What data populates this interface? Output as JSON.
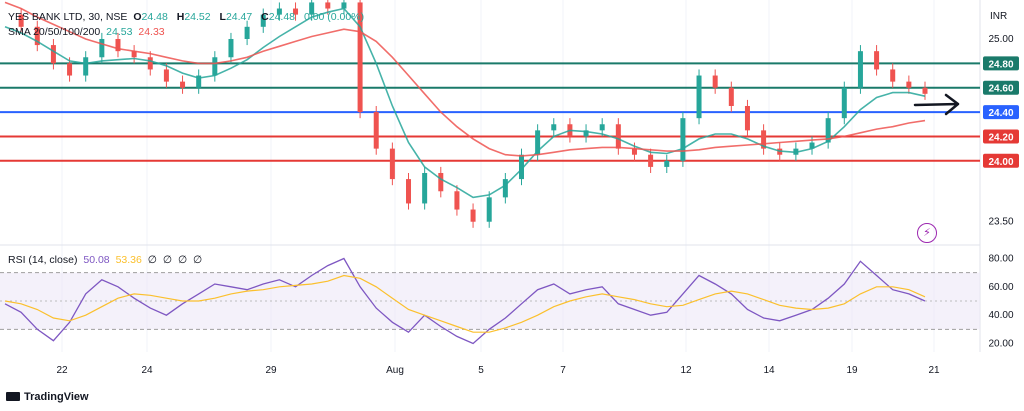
{
  "header": {
    "symbol": "YES BANK LTD, 30, NSE",
    "o_label": "O",
    "o": "24.48",
    "h_label": "H",
    "h": "24.52",
    "l_label": "L",
    "l": "24.47",
    "c_label": "C",
    "c": "24.48",
    "change": "0.00 (0.00%)",
    "sma_label": "SMA 20/50/100/200",
    "sma_values": [
      "24.53",
      "24.33"
    ]
  },
  "currency": "INR",
  "brand": "TradingView",
  "colors": {
    "up": "#26a69a",
    "down": "#ef5350",
    "sma20": "#26a69a",
    "sma50": "#ef5350",
    "rsi": "#7e57c2",
    "rsi_ma": "#fbc02d",
    "teal_level": "#1a7a6a",
    "blue_level": "#2962ff",
    "red_level": "#e53935"
  },
  "chart_data": [
    {
      "type": "line",
      "title": "YES BANK LTD, 30, NSE",
      "ylabel": "INR",
      "ylim": [
        23.35,
        25.32
      ],
      "x_ticks": [
        "22",
        "24",
        "29",
        "Aug",
        "5",
        "7",
        "12",
        "14",
        "19",
        "21"
      ],
      "y_ticks": [
        25.0,
        23.5
      ],
      "grid": true,
      "horizontal_levels": [
        {
          "value": 24.8,
          "label": "24.80",
          "color": "#1a7a6a"
        },
        {
          "value": 24.6,
          "label": "24.60",
          "color": "#1a7a6a"
        },
        {
          "value": 24.4,
          "label": "24.40",
          "color": "#2962ff"
        },
        {
          "value": 24.2,
          "label": "24.20",
          "color": "#e53935"
        },
        {
          "value": 24.0,
          "label": "24.00",
          "color": "#e53935"
        }
      ],
      "series": [
        {
          "name": "Price",
          "values": [
            25.2,
            25.1,
            24.95,
            24.8,
            24.7,
            24.85,
            25.0,
            24.9,
            24.85,
            24.75,
            24.65,
            24.6,
            24.7,
            24.85,
            25.0,
            25.1,
            25.2,
            25.25,
            25.2,
            25.3,
            25.25,
            25.3,
            24.4,
            24.1,
            23.85,
            23.65,
            23.9,
            23.75,
            23.6,
            23.5,
            23.7,
            23.85,
            24.05,
            24.25,
            24.3,
            24.2,
            24.25,
            24.3,
            24.1,
            24.05,
            23.95,
            24.0,
            24.35,
            24.7,
            24.6,
            24.45,
            24.25,
            24.1,
            24.05,
            24.1,
            24.15,
            24.35,
            24.6,
            24.9,
            24.75,
            24.65,
            24.6,
            24.55
          ]
        },
        {
          "name": "SMA 20",
          "values": [
            25.1,
            25.05,
            24.98,
            24.9,
            24.82,
            24.8,
            24.82,
            24.83,
            24.84,
            24.82,
            24.78,
            24.72,
            24.68,
            24.7,
            24.76,
            24.83,
            24.93,
            25.02,
            25.1,
            25.18,
            25.22,
            25.25,
            25.1,
            24.8,
            24.45,
            24.15,
            23.95,
            23.85,
            23.78,
            23.7,
            23.72,
            23.8,
            23.93,
            24.08,
            24.2,
            24.25,
            24.24,
            24.22,
            24.18,
            24.12,
            24.07,
            24.06,
            24.1,
            24.18,
            24.22,
            24.22,
            24.18,
            24.12,
            24.08,
            24.07,
            24.1,
            24.16,
            24.28,
            24.42,
            24.52,
            24.56,
            24.56,
            24.53
          ]
        },
        {
          "name": "SMA 50",
          "values": [
            25.3,
            25.25,
            25.18,
            25.12,
            25.06,
            25.0,
            24.96,
            24.92,
            24.9,
            24.88,
            24.85,
            24.82,
            24.8,
            24.8,
            24.82,
            24.85,
            24.9,
            24.94,
            24.98,
            25.02,
            25.05,
            25.08,
            25.06,
            24.98,
            24.85,
            24.7,
            24.55,
            24.4,
            24.28,
            24.18,
            24.1,
            24.05,
            24.04,
            24.05,
            24.07,
            24.09,
            24.1,
            24.11,
            24.11,
            24.1,
            24.09,
            24.08,
            24.08,
            24.09,
            24.11,
            24.12,
            24.13,
            24.14,
            24.15,
            24.16,
            24.17,
            24.18,
            24.2,
            24.23,
            24.26,
            24.28,
            24.31,
            24.33
          ]
        }
      ]
    },
    {
      "type": "line",
      "title": "RSI (14, close)",
      "ylim": [
        14,
        86
      ],
      "y_ticks": [
        80,
        60,
        40,
        20
      ],
      "band": [
        30,
        70
      ],
      "legend_values": [
        "50.08",
        "53.36"
      ],
      "legend_extra": [
        "∅",
        "∅",
        "∅",
        "∅"
      ],
      "series": [
        {
          "name": "RSI",
          "values": [
            48,
            42,
            30,
            22,
            35,
            55,
            65,
            60,
            52,
            45,
            40,
            48,
            55,
            62,
            60,
            58,
            62,
            65,
            60,
            68,
            75,
            80,
            60,
            45,
            35,
            28,
            40,
            32,
            25,
            20,
            30,
            38,
            48,
            58,
            62,
            55,
            58,
            60,
            48,
            44,
            40,
            42,
            55,
            68,
            62,
            55,
            44,
            38,
            36,
            40,
            44,
            52,
            62,
            78,
            68,
            58,
            55,
            50
          ]
        },
        {
          "name": "RSI MA",
          "values": [
            50,
            48,
            44,
            38,
            36,
            40,
            46,
            52,
            55,
            54,
            52,
            50,
            50,
            52,
            55,
            57,
            58,
            60,
            61,
            62,
            64,
            68,
            66,
            60,
            52,
            44,
            40,
            36,
            32,
            28,
            28,
            31,
            35,
            40,
            46,
            50,
            53,
            55,
            53,
            51,
            48,
            46,
            47,
            51,
            55,
            57,
            55,
            51,
            47,
            45,
            44,
            45,
            48,
            55,
            60,
            60,
            58,
            53
          ]
        }
      ]
    }
  ]
}
